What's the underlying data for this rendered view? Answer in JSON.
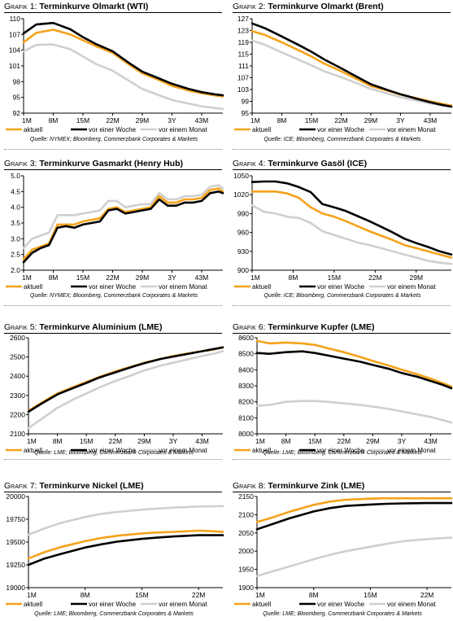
{
  "legend_labels": [
    "aktuell",
    "vor einer Woche",
    "vor einem Monat"
  ],
  "colors": {
    "aktuell": "#f5a21a",
    "vor_einer_woche": "#000000",
    "vor_einem_monat": "#cfcfcf"
  },
  "chart_data": [
    {
      "type": "line",
      "label": "Grafik 1:",
      "title": "Terminkurve Olmarkt (WTI)",
      "source": "Quelle: NYMEX; Bloomberg, Commerzbank Corporates & Markets",
      "x": [
        1,
        4,
        8,
        12,
        15,
        18,
        22,
        26,
        29,
        33,
        36,
        40,
        43,
        46,
        48
      ],
      "xticks": [
        "1M",
        "8M",
        "15M",
        "22M",
        "29M",
        "3Y",
        "43M"
      ],
      "xtick_values": [
        1,
        8,
        15,
        22,
        29,
        36,
        43
      ],
      "xlim": [
        1,
        48
      ],
      "ylim": [
        92,
        110
      ],
      "yticks": [
        "92",
        "95",
        "98",
        "101",
        "104",
        "107",
        "110"
      ],
      "series": [
        {
          "name": "aktuell",
          "values": [
            105.5,
            107.3,
            107.9,
            107.0,
            105.9,
            104.8,
            103.5,
            101.2,
            99.6,
            98.3,
            97.2,
            96.3,
            95.8,
            95.4,
            95.2
          ]
        },
        {
          "name": "vor einer Woche",
          "values": [
            107.2,
            108.9,
            109.2,
            108.0,
            106.5,
            105.2,
            103.8,
            101.5,
            99.9,
            98.6,
            97.6,
            96.6,
            96.0,
            95.6,
            95.4
          ]
        },
        {
          "name": "vor einem Monat",
          "values": [
            103.8,
            105.0,
            105.1,
            104.2,
            102.8,
            101.4,
            100.1,
            98.1,
            96.6,
            95.4,
            94.5,
            93.8,
            93.3,
            93.0,
            92.8
          ]
        }
      ]
    },
    {
      "type": "line",
      "label": "Grafik 2:",
      "title": "Terminkurve Olmarkt (Brent)",
      "source": "Quelle: ICE; Bloomberg, Commerzbank Corporates & Markets",
      "x": [
        1,
        4,
        8,
        12,
        15,
        18,
        22,
        26,
        29,
        33,
        36,
        40,
        43,
        46,
        48
      ],
      "xticks": [
        "1M",
        "8M",
        "15M",
        "22M",
        "29M",
        "3Y",
        "43M"
      ],
      "xtick_values": [
        1,
        8,
        15,
        22,
        29,
        36,
        43
      ],
      "xlim": [
        1,
        48
      ],
      "ylim": [
        95,
        127
      ],
      "yticks": [
        "95",
        "99",
        "103",
        "107",
        "111",
        "115",
        "119",
        "123",
        "127"
      ],
      "series": [
        {
          "name": "aktuell",
          "values": [
            122.8,
            121.5,
            119.0,
            116.3,
            114.2,
            111.8,
            109.2,
            106.4,
            104.2,
            102.6,
            101.3,
            100.0,
            99.0,
            98.1,
            97.6
          ]
        },
        {
          "name": "vor einer Woche",
          "values": [
            125.4,
            123.8,
            121.0,
            118.1,
            115.8,
            113.2,
            110.2,
            107.1,
            104.8,
            102.8,
            101.4,
            99.8,
            98.7,
            97.7,
            97.2
          ]
        },
        {
          "name": "vor einem Monat",
          "values": [
            119.6,
            118.2,
            115.6,
            113.1,
            111.2,
            109.2,
            107.2,
            105.0,
            103.2,
            101.6,
            100.4,
            99.2,
            98.3,
            97.6,
            97.2
          ]
        }
      ]
    },
    {
      "type": "line",
      "label": "Grafik 3:",
      "title": "Terminkurve Gasmarkt (Henry Hub)",
      "source": "Quelle: NYMEX; Bloomberg, Commerzbank Corporates & Markets",
      "x": [
        1,
        3,
        5,
        7,
        9,
        11,
        13,
        15,
        17,
        19,
        21,
        23,
        25,
        27,
        29,
        31,
        33,
        35,
        37,
        39,
        41,
        43,
        45,
        47,
        48
      ],
      "xticks": [
        "1M",
        "8M",
        "15M",
        "22M",
        "29M",
        "3Y",
        "43M"
      ],
      "xtick_values": [
        1,
        8,
        15,
        22,
        29,
        36,
        43
      ],
      "xlim": [
        1,
        48
      ],
      "ylim": [
        2,
        5
      ],
      "yticks": [
        "2.0",
        "2.5",
        "3.0",
        "3.5",
        "4.0",
        "4.5",
        "5.0"
      ],
      "series": [
        {
          "name": "aktuell",
          "values": [
            2.35,
            2.65,
            2.75,
            2.85,
            3.45,
            3.45,
            3.45,
            3.55,
            3.6,
            3.65,
            3.95,
            4.0,
            3.85,
            3.9,
            3.95,
            4.0,
            4.35,
            4.15,
            4.15,
            4.25,
            4.25,
            4.3,
            4.55,
            4.6,
            4.5
          ]
        },
        {
          "name": "vor einer Woche",
          "values": [
            2.25,
            2.55,
            2.7,
            2.8,
            3.35,
            3.4,
            3.35,
            3.45,
            3.5,
            3.55,
            3.9,
            3.95,
            3.8,
            3.85,
            3.9,
            3.95,
            4.25,
            4.05,
            4.05,
            4.15,
            4.15,
            4.2,
            4.45,
            4.5,
            4.45
          ]
        },
        {
          "name": "vor einem Monat",
          "values": [
            2.7,
            3.0,
            3.1,
            3.2,
            3.75,
            3.75,
            3.75,
            3.8,
            3.85,
            3.9,
            4.2,
            4.2,
            4.0,
            4.05,
            4.1,
            4.1,
            4.45,
            4.25,
            4.25,
            4.35,
            4.35,
            4.4,
            4.65,
            4.7,
            4.6
          ]
        }
      ]
    },
    {
      "type": "line",
      "label": "Grafik 4:",
      "title": "Terminkurve Gasöl (ICE)",
      "source": "Quelle: ICE; Bloomberg, Commerzbank Corporates & Markets",
      "x": [
        1,
        3,
        5,
        7,
        9,
        11,
        13,
        15,
        17,
        19,
        21,
        23,
        25,
        27,
        29,
        31,
        33,
        35
      ],
      "xticks": [
        "1M",
        "8M",
        "15M",
        "22M",
        "29M"
      ],
      "xtick_values": [
        1,
        8,
        15,
        22,
        29
      ],
      "xlim": [
        1,
        35
      ],
      "ylim": [
        900,
        1050
      ],
      "yticks": [
        "900",
        "930",
        "960",
        "990",
        "1020",
        "1050"
      ],
      "series": [
        {
          "name": "aktuell",
          "values": [
            1025,
            1025,
            1025,
            1022,
            1015,
            1000,
            990,
            985,
            978,
            970,
            962,
            955,
            948,
            940,
            935,
            930,
            925,
            920
          ]
        },
        {
          "name": "vor einer Woche",
          "values": [
            1040,
            1041,
            1041,
            1038,
            1032,
            1024,
            1005,
            1000,
            994,
            986,
            978,
            969,
            960,
            950,
            943,
            937,
            930,
            925
          ]
        },
        {
          "name": "vor einem Monat",
          "values": [
            1003,
            993,
            990,
            985,
            983,
            975,
            962,
            956,
            950,
            944,
            940,
            935,
            930,
            925,
            920,
            915,
            912,
            910
          ]
        }
      ]
    },
    {
      "type": "line",
      "label": "Grafik 5:",
      "title": "Terminkurve Aluminium (LME)",
      "source": "Quelle: LME; Bloomberg, Commerzbank Corporates & Markets",
      "x": [
        1,
        4,
        8,
        12,
        15,
        18,
        22,
        26,
        29,
        33,
        36,
        40,
        43,
        46,
        48
      ],
      "xticks": [
        "1M",
        "8M",
        "15M",
        "22M",
        "29M",
        "3Y",
        "43M"
      ],
      "xtick_values": [
        1,
        8,
        15,
        22,
        29,
        36,
        43
      ],
      "xlim": [
        1,
        48
      ],
      "ylim": [
        2100,
        2600
      ],
      "yticks": [
        "2100",
        "2200",
        "2300",
        "2400",
        "2500",
        "2600"
      ],
      "series": [
        {
          "name": "aktuell",
          "values": [
            2220,
            2260,
            2310,
            2345,
            2370,
            2395,
            2425,
            2450,
            2470,
            2490,
            2505,
            2520,
            2530,
            2540,
            2550
          ]
        },
        {
          "name": "vor einer Woche",
          "values": [
            2215,
            2255,
            2305,
            2340,
            2365,
            2392,
            2420,
            2448,
            2468,
            2490,
            2502,
            2518,
            2530,
            2542,
            2550
          ]
        },
        {
          "name": "vor einem Monat",
          "values": [
            2130,
            2175,
            2235,
            2280,
            2310,
            2340,
            2375,
            2405,
            2430,
            2455,
            2470,
            2490,
            2505,
            2518,
            2530
          ]
        }
      ]
    },
    {
      "type": "line",
      "label": "Grafik 6:",
      "title": "Terminkurve Kupfer (LME)",
      "source": "Quelle: LME; Bloomberg, Commerzbank Corporates & Markets",
      "x": [
        1,
        4,
        8,
        12,
        15,
        18,
        22,
        26,
        29,
        33,
        36,
        40,
        43,
        46,
        48
      ],
      "xticks": [
        "1M",
        "8M",
        "15M",
        "22M",
        "29M",
        "3Y",
        "43M"
      ],
      "xtick_values": [
        1,
        8,
        15,
        22,
        29,
        36,
        43
      ],
      "xlim": [
        1,
        48
      ],
      "ylim": [
        8000,
        8600
      ],
      "yticks": [
        "8000",
        "8100",
        "8200",
        "8300",
        "8400",
        "8500",
        "8600"
      ],
      "series": [
        {
          "name": "aktuell",
          "values": [
            8580,
            8565,
            8570,
            8565,
            8555,
            8535,
            8510,
            8480,
            8455,
            8425,
            8400,
            8370,
            8345,
            8315,
            8295
          ]
        },
        {
          "name": "vor einer Woche",
          "values": [
            8505,
            8500,
            8510,
            8515,
            8505,
            8490,
            8470,
            8450,
            8430,
            8405,
            8380,
            8355,
            8330,
            8305,
            8285
          ]
        },
        {
          "name": "vor einem Monat",
          "values": [
            8175,
            8180,
            8200,
            8205,
            8205,
            8200,
            8190,
            8180,
            8170,
            8155,
            8140,
            8120,
            8105,
            8085,
            8070
          ]
        }
      ]
    },
    {
      "type": "line",
      "label": "Grafik 7:",
      "title": "Terminkurve Nickel (LME)",
      "source": "Quelle: LME; Bloomberg, Commerzbank Corporates & Markets",
      "x": [
        1,
        3,
        5,
        8,
        10,
        12,
        15,
        17,
        19,
        22,
        24,
        25
      ],
      "xticks": [
        "1M",
        "8M",
        "15M",
        "22M"
      ],
      "xtick_values": [
        1,
        8,
        15,
        22
      ],
      "xlim": [
        1,
        25
      ],
      "ylim": [
        19000,
        20000
      ],
      "yticks": [
        "19000",
        "19250",
        "19500",
        "19750",
        "20000"
      ],
      "series": [
        {
          "name": "aktuell",
          "values": [
            19320,
            19390,
            19445,
            19510,
            19545,
            19570,
            19595,
            19605,
            19612,
            19625,
            19618,
            19612
          ]
        },
        {
          "name": "vor einer Woche",
          "values": [
            19250,
            19320,
            19370,
            19440,
            19475,
            19505,
            19535,
            19550,
            19562,
            19575,
            19575,
            19575
          ]
        },
        {
          "name": "vor einem Monat",
          "values": [
            19580,
            19650,
            19710,
            19775,
            19810,
            19830,
            19855,
            19868,
            19878,
            19890,
            19893,
            19895
          ]
        }
      ]
    },
    {
      "type": "line",
      "label": "Grafik 8:",
      "title": "Terminkurve Zink (LME)",
      "source": "Quelle: LME; Bloomberg, Commerzbank Corporates & Markets",
      "x": [
        1,
        3,
        5,
        8,
        10,
        12,
        15,
        17,
        19,
        22,
        24,
        25
      ],
      "xticks": [
        "1M",
        "8M",
        "15M",
        "22M"
      ],
      "xtick_values": [
        1,
        8,
        15,
        22
      ],
      "xlim": [
        1,
        25
      ],
      "ylim": [
        1900,
        2150
      ],
      "yticks": [
        "1900",
        "1950",
        "2000",
        "2050",
        "2100",
        "2150"
      ],
      "series": [
        {
          "name": "aktuell",
          "values": [
            2080,
            2093,
            2108,
            2127,
            2136,
            2141,
            2144,
            2145,
            2145,
            2145,
            2145,
            2145
          ]
        },
        {
          "name": "vor einer Woche",
          "values": [
            2060,
            2075,
            2090,
            2109,
            2118,
            2124,
            2128,
            2130,
            2131,
            2132,
            2132,
            2132
          ]
        },
        {
          "name": "vor einem Monat",
          "values": [
            1932,
            1945,
            1958,
            1978,
            1990,
            2000,
            2012,
            2020,
            2027,
            2033,
            2036,
            2037
          ]
        }
      ]
    }
  ]
}
